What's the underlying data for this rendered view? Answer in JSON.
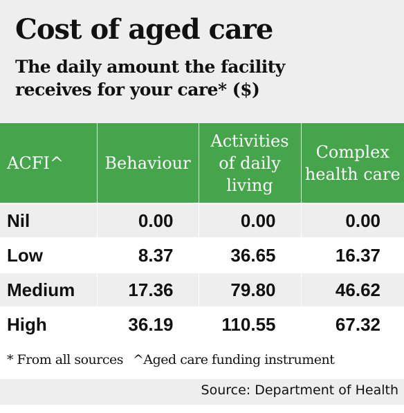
{
  "header": {
    "title": "Cost of aged care",
    "subtitle_line1": "The daily amount the facility",
    "subtitle_line2": "receives for your care* ($)"
  },
  "chart_data": {
    "type": "table",
    "columns": [
      "ACFI^",
      "Behaviour",
      "Activities of daily living",
      "Complex health care"
    ],
    "rows": [
      {
        "label": "Nil",
        "values": [
          "0.00",
          "0.00",
          "0.00"
        ]
      },
      {
        "label": "Low",
        "values": [
          "8.37",
          "36.65",
          "16.37"
        ]
      },
      {
        "label": "Medium",
        "values": [
          "17.36",
          "79.80",
          "46.62"
        ]
      },
      {
        "label": "High",
        "values": [
          "36.19",
          "110.55",
          "67.32"
        ]
      }
    ]
  },
  "footnotes": {
    "note1": "* From all sources",
    "note2": "^Aged care funding instrument"
  },
  "source": "Source: Department of Health",
  "colors": {
    "header_bg": "#44a54b",
    "band_bg": "#eeeeee"
  }
}
